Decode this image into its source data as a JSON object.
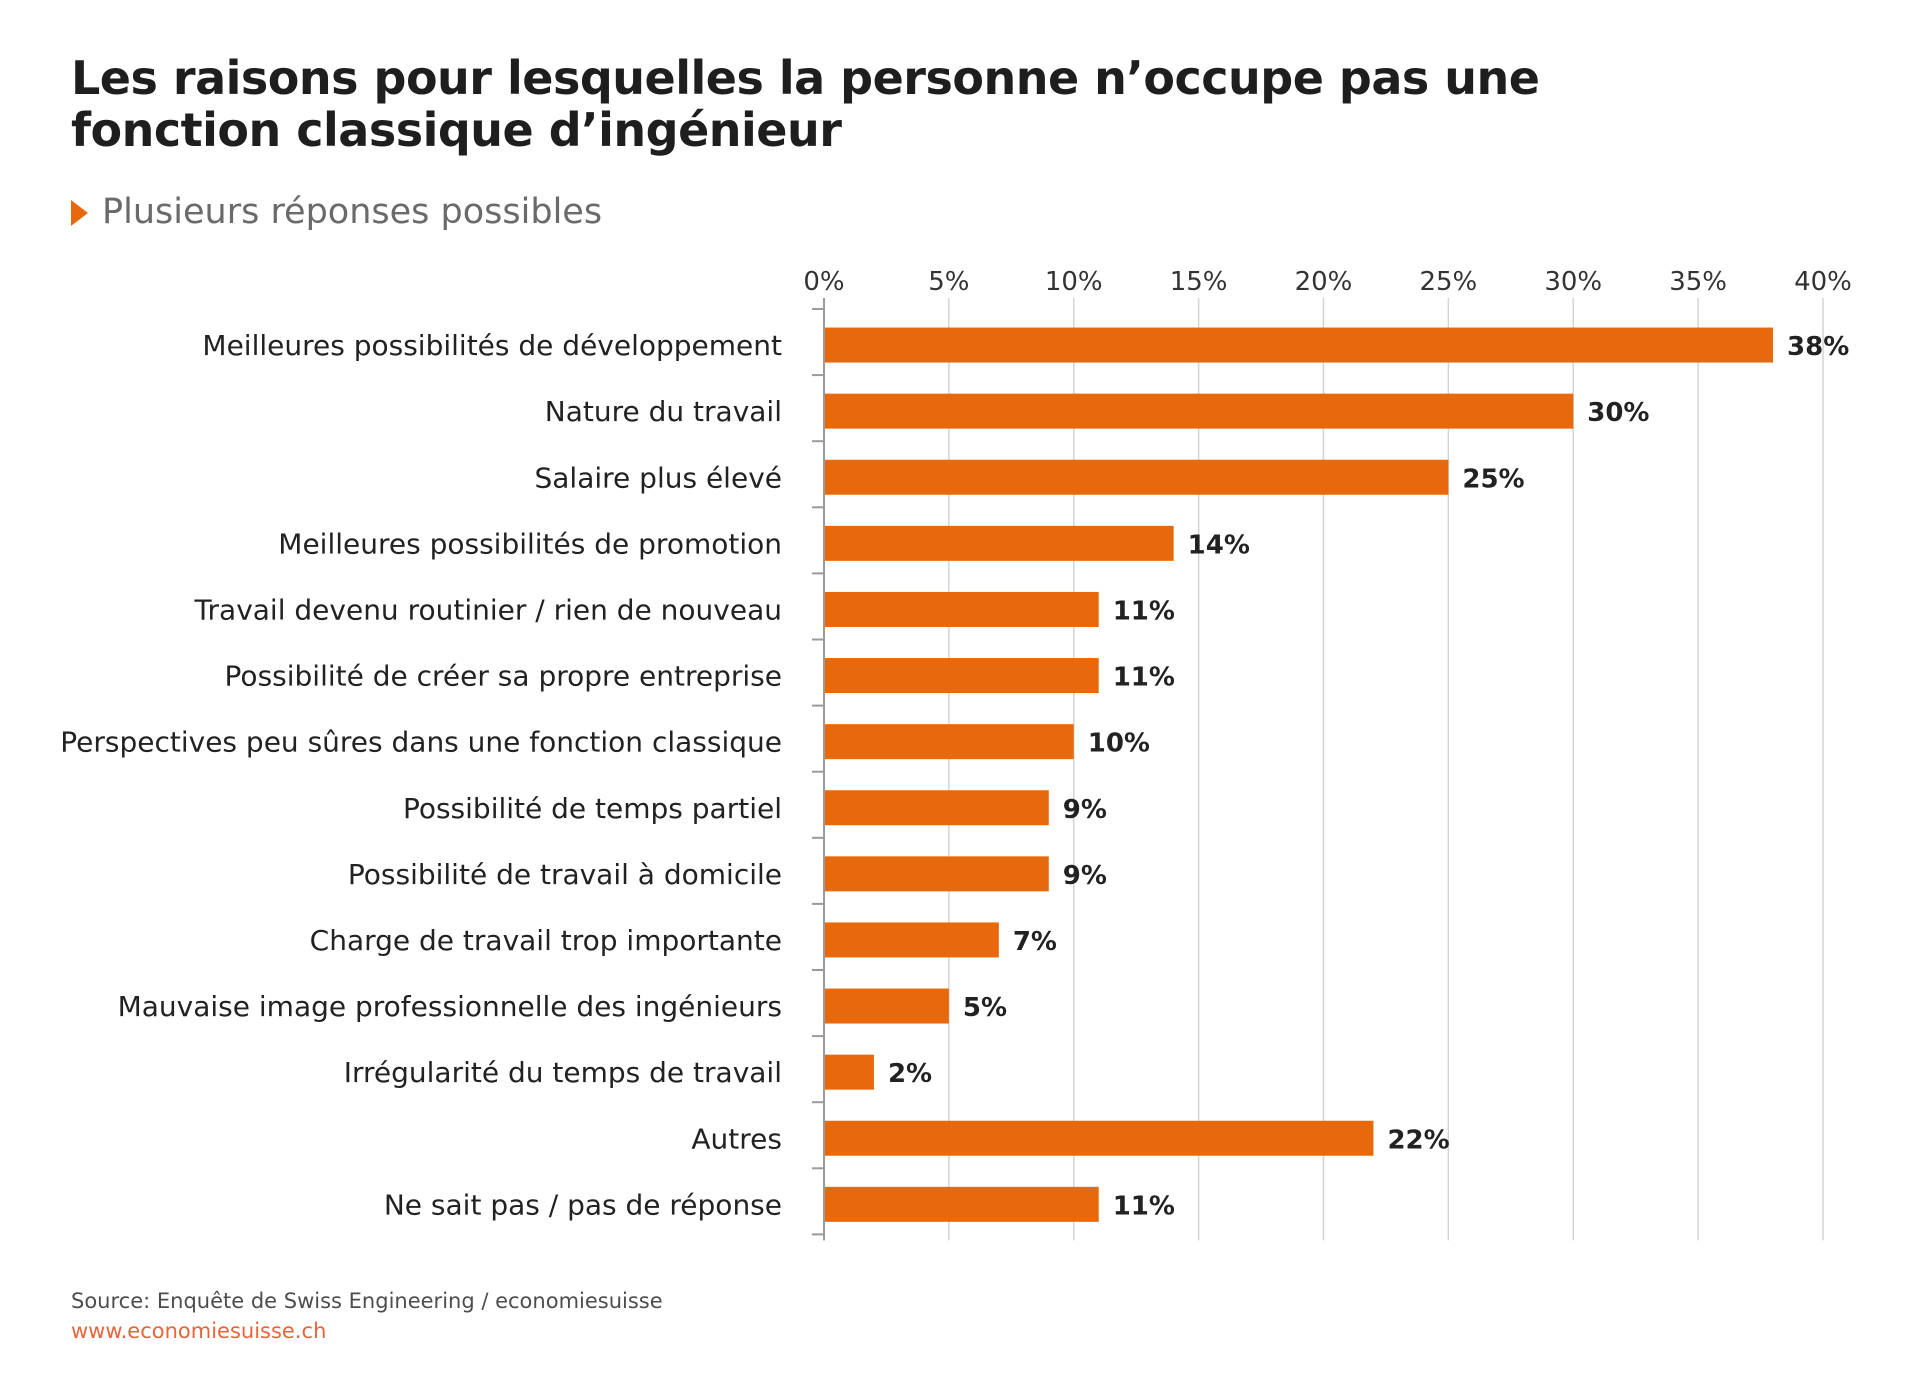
{
  "header": {
    "title_line1": "Les raisons pour lesquelles la personne n’occupe pas une",
    "title_line2": "fonction classique d’ingénieur",
    "subtitle": "Plusieurs réponses possibles"
  },
  "footer": {
    "source": "Source: Enquête de Swiss Engineering / economiesuisse",
    "url": "www.economiesuisse.ch"
  },
  "colors": {
    "bar": "#e8690c",
    "grid": "#d4d4d4",
    "axis": "#9a9a9a",
    "accent": "#e8690c",
    "url": "#e8643a"
  },
  "chart_data": {
    "type": "bar",
    "orientation": "horizontal",
    "title": "Les raisons pour lesquelles la personne n’occupe pas une fonction classique d’ingénieur",
    "subtitle": "Plusieurs réponses possibles",
    "xlabel": "",
    "ylabel": "",
    "xlim": [
      0,
      40
    ],
    "x_ticks": [
      0,
      5,
      10,
      15,
      20,
      25,
      30,
      35,
      40
    ],
    "x_tick_labels": [
      "0%",
      "5%",
      "10%",
      "15%",
      "20%",
      "25%",
      "30%",
      "35%",
      "40%"
    ],
    "x_axis_position": "top",
    "grid": true,
    "categories": [
      "Meilleures possibilités de développement",
      "Nature du travail",
      "Salaire plus élevé",
      "Meilleures possibilités de promotion",
      "Travail devenu routinier / rien de nouveau",
      "Possibilité de créer sa propre entreprise",
      "Perspectives peu sûres dans une fonction classique",
      "Possibilité de temps partiel",
      "Possibilité de travail à domicile",
      "Charge de travail trop importante",
      "Mauvaise image professionnelle des ingénieurs",
      "Irrégularité du temps de travail",
      "Autres",
      "Ne sait pas / pas de réponse"
    ],
    "values": [
      38,
      30,
      25,
      14,
      11,
      11,
      10,
      9,
      9,
      7,
      5,
      2,
      22,
      11
    ],
    "value_labels": [
      "38%",
      "30%",
      "25%",
      "14%",
      "11%",
      "11%",
      "10%",
      "9%",
      "9%",
      "7%",
      "5%",
      "2%",
      "22%",
      "11%"
    ]
  }
}
